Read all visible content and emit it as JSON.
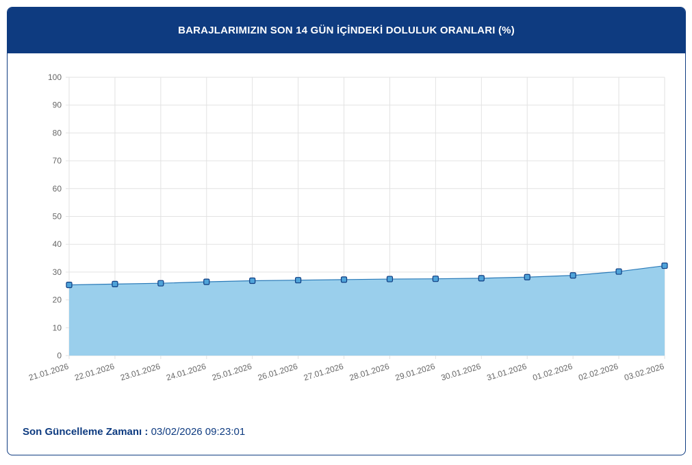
{
  "header": {
    "title": "BARAJLARIMIZIN SON 14 GÜN İÇİNDEKİ DOLULUK ORANLARI (%)"
  },
  "chart_data": {
    "type": "area",
    "title": "BARAJLARIMIZIN SON 14 GÜN İÇİNDEKİ DOLULUK ORANLARI (%)",
    "categories": [
      "21.01.2026",
      "22.01.2026",
      "23.01.2026",
      "24.01.2026",
      "25.01.2026",
      "26.01.2026",
      "27.01.2026",
      "28.01.2026",
      "29.01.2026",
      "30.01.2026",
      "31.01.2026",
      "01.02.2026",
      "02.02.2026",
      "03.02.2026"
    ],
    "series": [
      {
        "values": [
          25.4,
          25.7,
          26.0,
          26.5,
          26.9,
          27.1,
          27.3,
          27.5,
          27.6,
          27.8,
          28.2,
          28.8,
          30.2,
          32.3
        ]
      }
    ],
    "yticks": [
      0,
      10,
      20,
      30,
      40,
      50,
      60,
      70,
      80,
      90,
      100
    ],
    "ylim": [
      0,
      100
    ],
    "xlabel": "",
    "ylabel": "",
    "grid": true,
    "legend": "none",
    "colors": {
      "fill": "#9acfec",
      "line": "#2a7ab8",
      "marker_fill": "#4fa3d9",
      "marker_stroke": "#0e3b80",
      "grid": "#e2e2e2",
      "tick_text": "#666666"
    }
  },
  "footer": {
    "label": "Son Güncelleme Zamanı :",
    "value": "03/02/2026 09:23:01"
  }
}
